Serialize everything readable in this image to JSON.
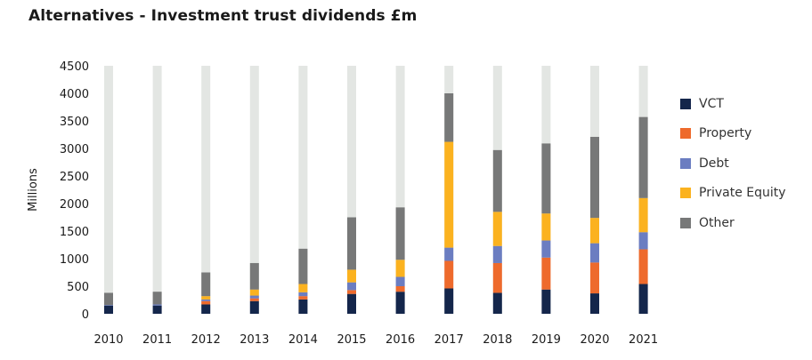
{
  "title": "Alternatives - Investment trust dividends £m",
  "chart_data": {
    "type": "bar",
    "stacked": true,
    "title": "Alternatives - Investment trust dividends £m",
    "xlabel": "",
    "ylabel": "Millions",
    "ylim": [
      0,
      4500
    ],
    "yticks": [
      0,
      500,
      1000,
      1500,
      2000,
      2500,
      3000,
      3500,
      4000,
      4500
    ],
    "categories": [
      "2010",
      "2011",
      "2012",
      "2013",
      "2014",
      "2015",
      "2016",
      "2017",
      "2018",
      "2019",
      "2020",
      "2021"
    ],
    "background_bar_value": 4500,
    "background_bar_color": "#e3e6e3",
    "series": [
      {
        "name": "VCT",
        "color": "#14264b",
        "values": [
          150,
          150,
          170,
          230,
          260,
          360,
          400,
          460,
          380,
          440,
          370,
          540
        ]
      },
      {
        "name": "Property",
        "color": "#ee6a2c",
        "values": [
          0,
          0,
          60,
          50,
          60,
          70,
          100,
          500,
          540,
          580,
          560,
          630
        ]
      },
      {
        "name": "Debt",
        "color": "#6b7dc1",
        "values": [
          10,
          20,
          30,
          50,
          70,
          140,
          170,
          240,
          310,
          310,
          350,
          310
        ]
      },
      {
        "name": "Private Equity",
        "color": "#fbb21f",
        "values": [
          0,
          0,
          60,
          110,
          150,
          230,
          310,
          1920,
          620,
          490,
          460,
          620
        ]
      },
      {
        "name": "Other",
        "color": "#777878",
        "values": [
          220,
          230,
          430,
          480,
          640,
          950,
          950,
          880,
          1120,
          1270,
          1470,
          1470
        ]
      }
    ],
    "legend_position": "right",
    "grid": false
  }
}
